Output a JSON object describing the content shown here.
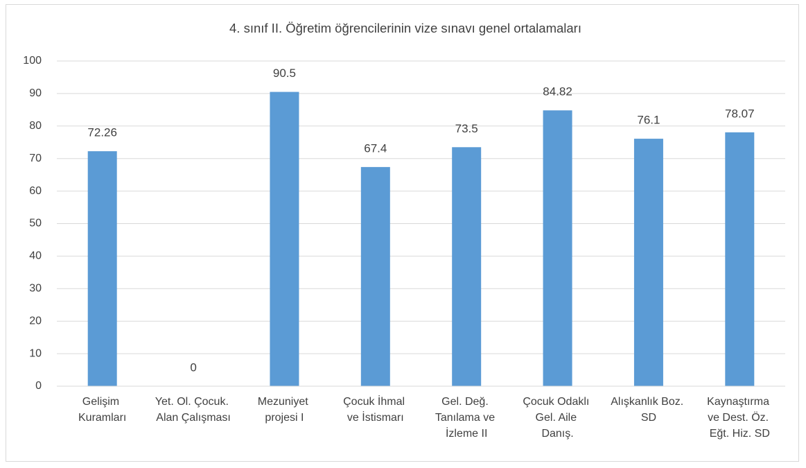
{
  "chart_data": {
    "type": "bar",
    "title": "4. sınıf II. Öğretim öğrencilerinin vize sınavı genel ortalamaları",
    "categories": [
      "Gelişim Kuramları",
      "Yet. Ol. Çocuk. Alan Çalışması",
      "Mezuniyet projesi I",
      "Çocuk İhmal ve İstismarı",
      "Gel. Değ. Tanılama ve İzleme II",
      "Çocuk Odaklı Gel. Aile Danış.",
      "Alışkanlık Boz. SD",
      "Kaynaştırma ve Dest. Öz. Eğt. Hiz. SD"
    ],
    "values": [
      72.26,
      0,
      90.5,
      67.4,
      73.5,
      84.82,
      76.1,
      78.07
    ],
    "color": "#5b9bd5",
    "ylim": [
      0,
      100
    ],
    "yticks": [
      0,
      10,
      20,
      30,
      40,
      50,
      60,
      70,
      80,
      90,
      100
    ],
    "grid": true
  }
}
